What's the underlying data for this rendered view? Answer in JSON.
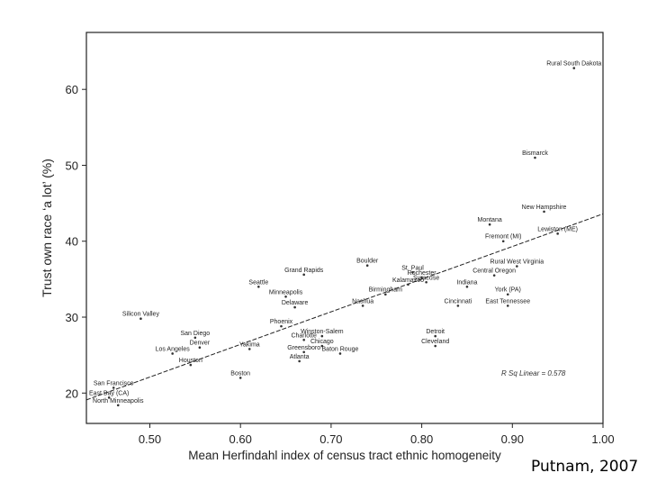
{
  "chart_data": {
    "type": "scatter",
    "title": "",
    "xlabel": "Mean Herfindahl index of census tract ethnic homogeneity",
    "ylabel": "Trust own race ‘a lot’ (%)",
    "xlim": [
      0.43,
      1.0
    ],
    "ylim": [
      16.0,
      67.5
    ],
    "xticks": [
      "0.50",
      "0.60",
      "0.70",
      "0.80",
      "0.90",
      "1.00"
    ],
    "yticks": [
      "20",
      "30",
      "40",
      "50",
      "60"
    ],
    "grid": false,
    "legend": "none",
    "annotation": "R Sq Linear = 0.578",
    "fit_line": {
      "x": [
        0.43,
        1.0
      ],
      "y": [
        19.1,
        43.6
      ]
    },
    "points": [
      {
        "label": "Rural South Dakota",
        "x": 0.968,
        "y": 62.8
      },
      {
        "label": "Bismarck",
        "x": 0.925,
        "y": 51.0
      },
      {
        "label": "New Hampshire",
        "x": 0.935,
        "y": 43.9
      },
      {
        "label": "Montana",
        "x": 0.875,
        "y": 42.2
      },
      {
        "label": "Lewiston (ME)",
        "x": 0.95,
        "y": 41.0
      },
      {
        "label": "Fremont (MI)",
        "x": 0.89,
        "y": 40.0
      },
      {
        "label": "Rural West Virginia",
        "x": 0.905,
        "y": 36.7
      },
      {
        "label": "Central Oregon",
        "x": 0.88,
        "y": 35.5
      },
      {
        "label": "York (PA)",
        "x": 0.895,
        "y": 33.0
      },
      {
        "label": "East Tennessee",
        "x": 0.895,
        "y": 31.5
      },
      {
        "label": "Boulder",
        "x": 0.74,
        "y": 36.8
      },
      {
        "label": "St. Paul",
        "x": 0.79,
        "y": 35.9
      },
      {
        "label": "Rochester",
        "x": 0.8,
        "y": 35.2
      },
      {
        "label": "Syracuse",
        "x": 0.805,
        "y": 34.6
      },
      {
        "label": "Indiana",
        "x": 0.85,
        "y": 34.0
      },
      {
        "label": "Kalamazoo",
        "x": 0.785,
        "y": 34.3
      },
      {
        "label": "Birmingham",
        "x": 0.76,
        "y": 33.0
      },
      {
        "label": "Cincinnati",
        "x": 0.84,
        "y": 31.5
      },
      {
        "label": "Nashua",
        "x": 0.735,
        "y": 31.5
      },
      {
        "label": "Grand Rapids",
        "x": 0.67,
        "y": 35.6
      },
      {
        "label": "Seattle",
        "x": 0.62,
        "y": 34.0
      },
      {
        "label": "Minneapolis",
        "x": 0.65,
        "y": 32.7
      },
      {
        "label": "Delaware",
        "x": 0.66,
        "y": 31.3
      },
      {
        "label": "Silicon Valley",
        "x": 0.49,
        "y": 29.8
      },
      {
        "label": "Phoenix",
        "x": 0.645,
        "y": 28.8
      },
      {
        "label": "Winston-Salem",
        "x": 0.69,
        "y": 27.5
      },
      {
        "label": "Charlotte",
        "x": 0.67,
        "y": 27.0
      },
      {
        "label": "Chicago",
        "x": 0.69,
        "y": 26.2
      },
      {
        "label": "San Diego",
        "x": 0.55,
        "y": 27.3
      },
      {
        "label": "Denver",
        "x": 0.555,
        "y": 26.0
      },
      {
        "label": "Los Angeles",
        "x": 0.525,
        "y": 25.2
      },
      {
        "label": "Yakima",
        "x": 0.61,
        "y": 25.8
      },
      {
        "label": "Greensboro",
        "x": 0.67,
        "y": 25.4
      },
      {
        "label": "Baton Rouge",
        "x": 0.71,
        "y": 25.2
      },
      {
        "label": "Atlanta",
        "x": 0.665,
        "y": 24.2
      },
      {
        "label": "Houston",
        "x": 0.545,
        "y": 23.7
      },
      {
        "label": "Boston",
        "x": 0.6,
        "y": 22.0
      },
      {
        "label": "Detroit",
        "x": 0.815,
        "y": 27.5
      },
      {
        "label": "Cleveland",
        "x": 0.815,
        "y": 26.2
      },
      {
        "label": "San Francisco",
        "x": 0.46,
        "y": 20.7
      },
      {
        "label": "East Bay (CA)",
        "x": 0.455,
        "y": 19.4
      },
      {
        "label": "North Minneapolis",
        "x": 0.465,
        "y": 18.4
      }
    ]
  },
  "credit": "Putnam, 2007"
}
